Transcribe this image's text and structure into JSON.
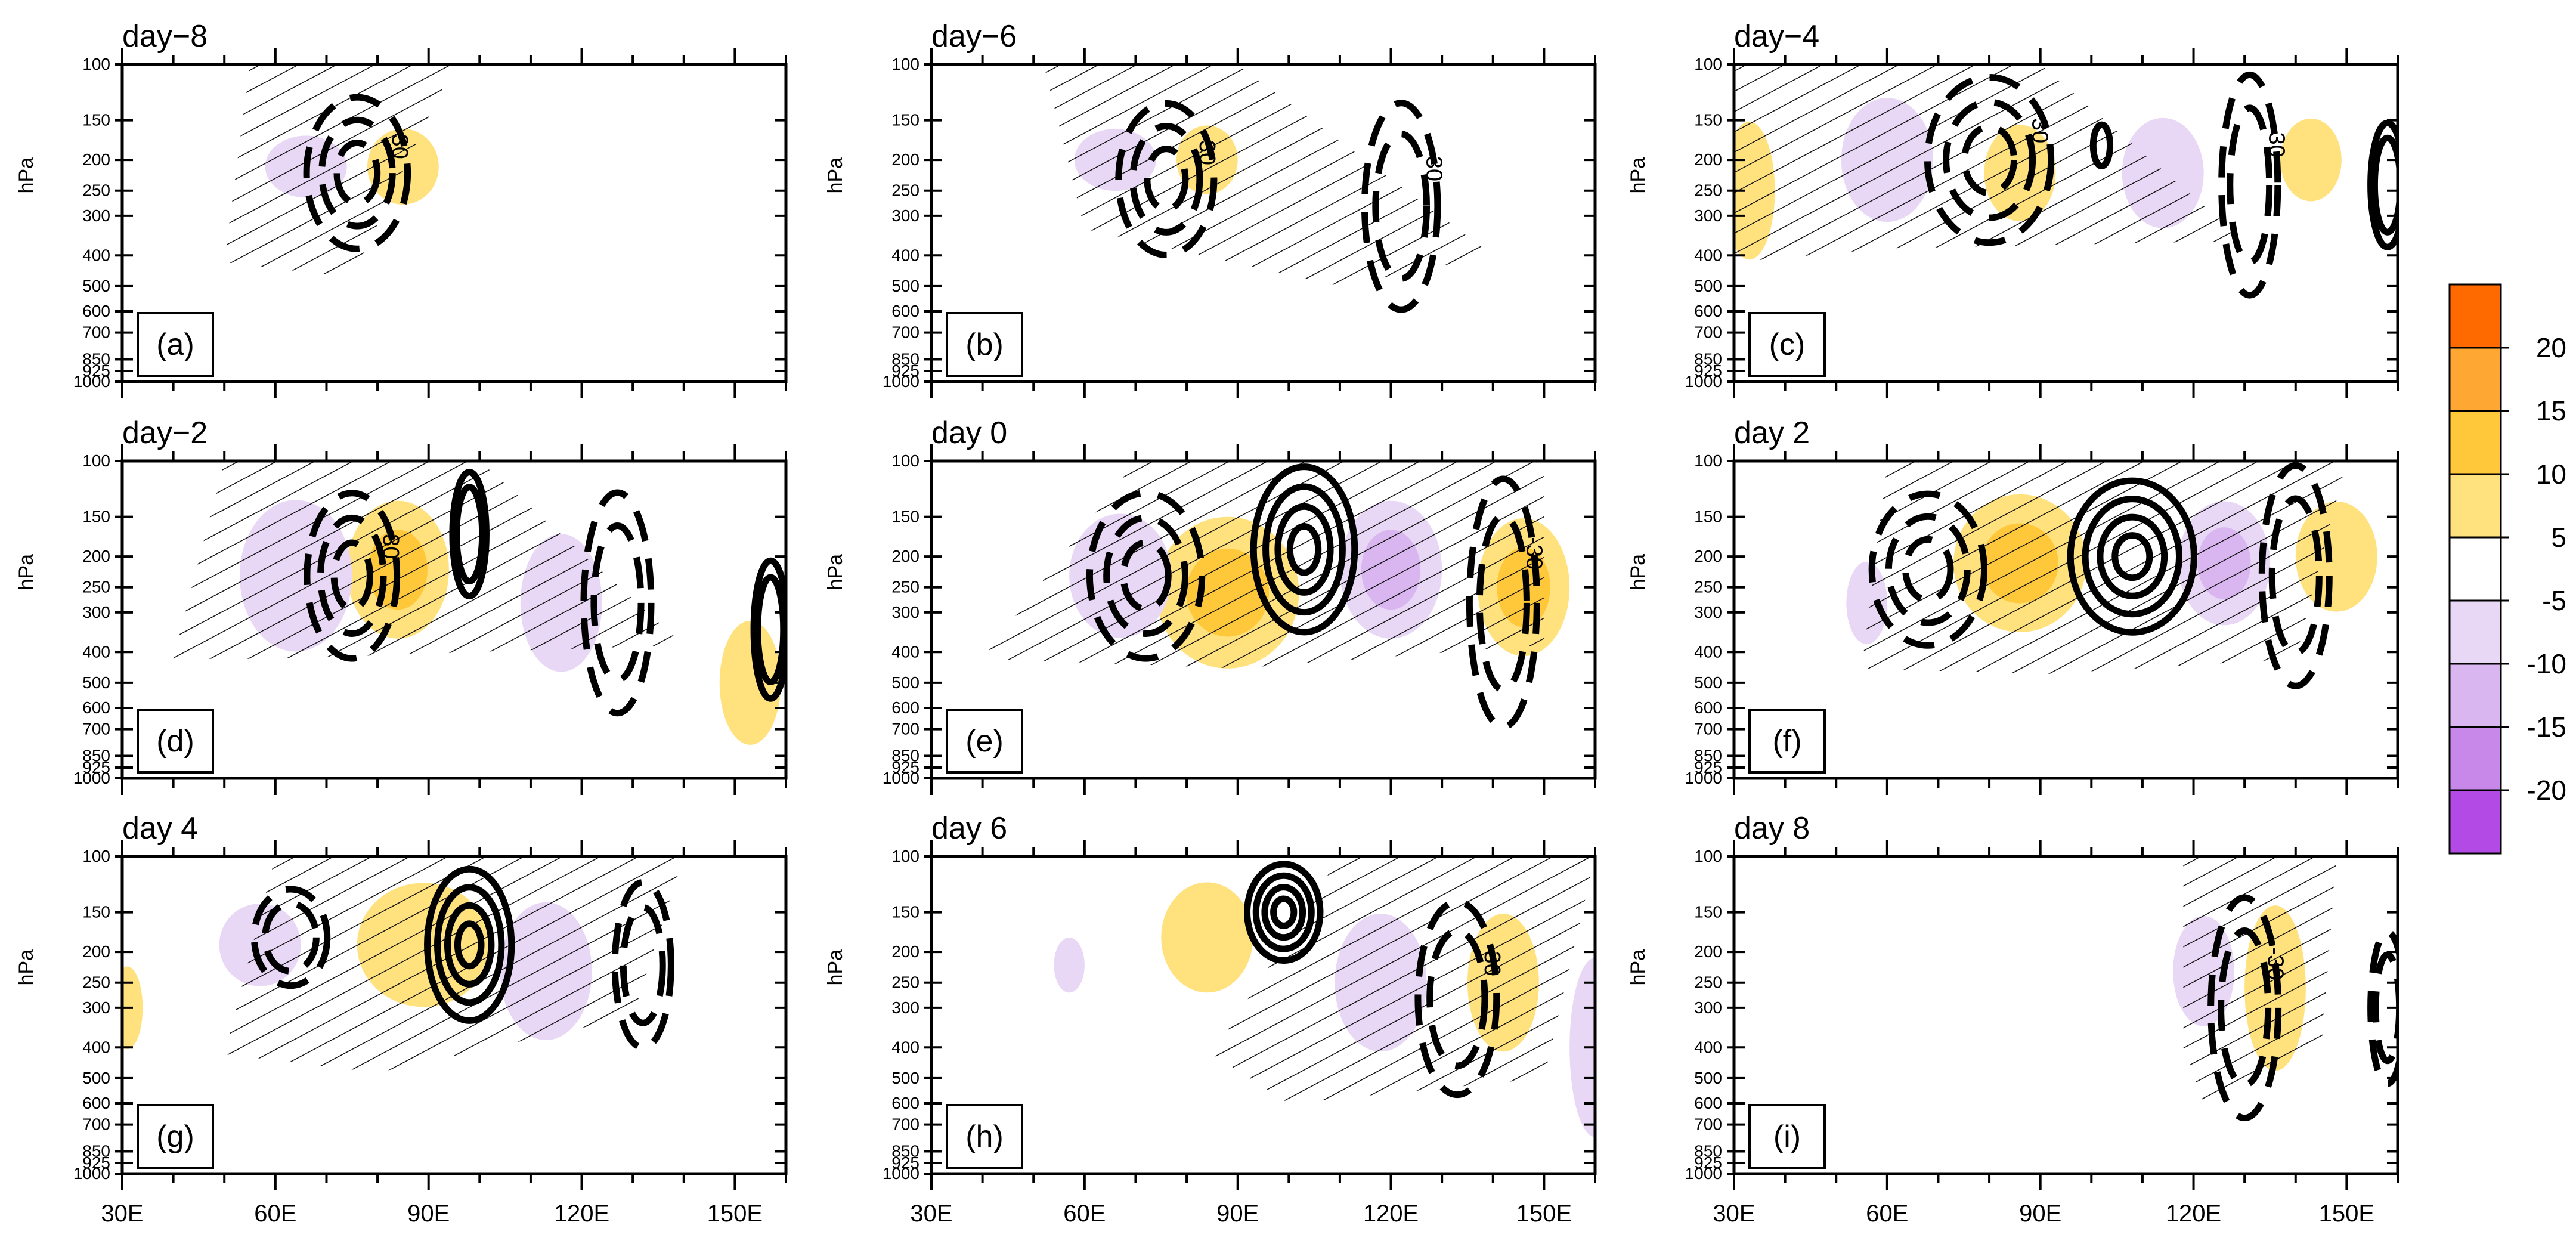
{
  "chart_data": {
    "type": "heatmap",
    "description_free": true,
    "y_axis": {
      "label": "hPa",
      "ticks": [
        100,
        150,
        200,
        250,
        300,
        400,
        500,
        600,
        700,
        850,
        925,
        1000
      ],
      "tick_labels": [
        "100",
        "150",
        "200",
        "250",
        "300",
        "400",
        "500",
        "600",
        "700",
        "850",
        "925",
        "1000"
      ],
      "range": [
        1000,
        100
      ],
      "scale": "log"
    },
    "x_axis": {
      "ticks": [
        30,
        60,
        90,
        120,
        150
      ],
      "tick_labels": [
        "30E",
        "60E",
        "90E",
        "120E",
        "150E"
      ],
      "range": [
        30,
        160
      ]
    },
    "contour_label": "-30",
    "colorbar": {
      "levels": [
        "20",
        "15",
        "10",
        "5",
        "-5",
        "-10",
        "-15",
        "-20"
      ],
      "colors": [
        "#ff6a00",
        "#ffa733",
        "#ffc83a",
        "#ffe27e",
        "#ffffff",
        "#e8d8f6",
        "#d9b6f0",
        "#c788ea",
        "#b44ae6"
      ]
    },
    "panels": [
      {
        "day": "day−8",
        "letter": "(a)",
        "positive": [
          {
            "lon": 85,
            "p": 210,
            "w": 7,
            "h": 0.55,
            "lvl": 1
          }
        ],
        "negative": [
          {
            "lon": 66,
            "p": 210,
            "w": 8,
            "h": 0.45,
            "lvl": 1
          }
        ],
        "solid": [],
        "dashed": [
          {
            "lon": 76,
            "p": 220,
            "w": 18,
            "h": 1.1,
            "label": true
          }
        ],
        "hatch": [
          [
            55,
            100
          ],
          [
            95,
            100
          ],
          [
            75,
            470
          ],
          [
            50,
            420
          ]
        ]
      },
      {
        "day": "day−6",
        "letter": "(b)",
        "positive": [
          {
            "lon": 84,
            "p": 200,
            "w": 6,
            "h": 0.5,
            "lvl": 1
          }
        ],
        "negative": [
          {
            "lon": 66,
            "p": 200,
            "w": 8,
            "h": 0.45,
            "lvl": 1
          }
        ],
        "solid": [],
        "dashed": [
          {
            "lon": 76,
            "p": 230,
            "w": 17,
            "h": 1.1,
            "label": true
          },
          {
            "lon": 122,
            "p": 280,
            "w": 13,
            "h": 1.5,
            "label": true
          }
        ],
        "hatch": [
          [
            52,
            100
          ],
          [
            90,
            100
          ],
          [
            140,
            400
          ],
          [
            110,
            500
          ],
          [
            60,
            330
          ]
        ]
      },
      {
        "day": "day−4",
        "letter": "(c)",
        "positive": [
          {
            "lon": 33,
            "p": 250,
            "w": 5,
            "h": 1.0,
            "lvl": 1
          },
          {
            "lon": 86,
            "p": 220,
            "w": 7,
            "h": 0.7,
            "lvl": 1
          },
          {
            "lon": 143,
            "p": 200,
            "w": 6,
            "h": 0.6,
            "lvl": 1
          }
        ],
        "negative": [
          {
            "lon": 60,
            "p": 200,
            "w": 9,
            "h": 0.9,
            "lvl": 1
          },
          {
            "lon": 114,
            "p": 220,
            "w": 8,
            "h": 0.8,
            "lvl": 1
          }
        ],
        "solid": [
          {
            "lon": 102,
            "p": 180,
            "w": 3,
            "h": 0.3
          },
          {
            "lon": 158,
            "p": 240,
            "w": 6,
            "h": 0.9
          }
        ],
        "dashed": [
          {
            "lon": 80,
            "p": 200,
            "w": 22,
            "h": 1.2,
            "label": true
          },
          {
            "lon": 131,
            "p": 240,
            "w": 10,
            "h": 1.6,
            "label": true
          }
        ],
        "hatch": [
          [
            30,
            100
          ],
          [
            90,
            100
          ],
          [
            130,
            360
          ],
          [
            60,
            380
          ],
          [
            30,
            420
          ]
        ]
      },
      {
        "day": "day−2",
        "letter": "(d)",
        "positive": [
          {
            "lon": 84,
            "p": 220,
            "w": 10,
            "h": 1.0,
            "lvl": 2
          },
          {
            "lon": 153,
            "p": 500,
            "w": 6,
            "h": 0.9,
            "lvl": 1
          }
        ],
        "negative": [
          {
            "lon": 64,
            "p": 230,
            "w": 11,
            "h": 1.1,
            "lvl": 1
          },
          {
            "lon": 116,
            "p": 280,
            "w": 8,
            "h": 1.0,
            "lvl": 1
          }
        ],
        "solid": [
          {
            "lon": 98,
            "p": 170,
            "w": 6,
            "h": 0.9
          },
          {
            "lon": 157,
            "p": 340,
            "w": 6,
            "h": 1.0
          }
        ],
        "dashed": [
          {
            "lon": 75,
            "p": 230,
            "w": 16,
            "h": 1.2,
            "label": true
          },
          {
            "lon": 127,
            "p": 280,
            "w": 12,
            "h": 1.6,
            "label": false
          }
        ],
        "hatch": [
          [
            50,
            100
          ],
          [
            100,
            100
          ],
          [
            140,
            380
          ],
          [
            60,
            420
          ],
          [
            40,
            420
          ]
        ]
      },
      {
        "day": "day 0",
        "letter": "(e)",
        "positive": [
          {
            "lon": 88,
            "p": 260,
            "w": 14,
            "h": 1.1,
            "lvl": 2
          },
          {
            "lon": 146,
            "p": 250,
            "w": 9,
            "h": 1.0,
            "lvl": 2
          }
        ],
        "negative": [
          {
            "lon": 67,
            "p": 230,
            "w": 10,
            "h": 0.9,
            "lvl": 1
          },
          {
            "lon": 120,
            "p": 220,
            "w": 10,
            "h": 1.0,
            "lvl": 2
          }
        ],
        "solid": [
          {
            "lon": 103,
            "p": 190,
            "w": 18,
            "h": 1.2
          }
        ],
        "dashed": [
          {
            "lon": 72,
            "p": 230,
            "w": 20,
            "h": 1.2,
            "label": false
          },
          {
            "lon": 142,
            "p": 280,
            "w": 12,
            "h": 1.8,
            "label": true
          }
        ],
        "hatch": [
          [
            70,
            100
          ],
          [
            150,
            100
          ],
          [
            150,
            380
          ],
          [
            90,
            450
          ],
          [
            40,
            420
          ]
        ]
      },
      {
        "day": "day 2",
        "letter": "(f)",
        "positive": [
          {
            "lon": 86,
            "p": 210,
            "w": 13,
            "h": 1.0,
            "lvl": 2
          },
          {
            "lon": 148,
            "p": 200,
            "w": 8,
            "h": 0.8,
            "lvl": 1
          }
        ],
        "negative": [
          {
            "lon": 126,
            "p": 210,
            "w": 9,
            "h": 0.9,
            "lvl": 2
          },
          {
            "lon": 56,
            "p": 280,
            "w": 4,
            "h": 0.6,
            "lvl": 1
          }
        ],
        "solid": [
          {
            "lon": 108,
            "p": 200,
            "w": 22,
            "h": 1.1
          }
        ],
        "dashed": [
          {
            "lon": 68,
            "p": 220,
            "w": 20,
            "h": 1.1,
            "label": false
          },
          {
            "lon": 140,
            "p": 230,
            "w": 12,
            "h": 1.6,
            "label": false
          }
        ],
        "hatch": [
          [
            60,
            100
          ],
          [
            150,
            100
          ],
          [
            140,
            420
          ],
          [
            90,
            470
          ],
          [
            55,
            450
          ]
        ]
      },
      {
        "day": "day 4",
        "letter": "(g)",
        "positive": [
          {
            "lon": 89,
            "p": 190,
            "w": 13,
            "h": 0.9,
            "lvl": 1
          },
          {
            "lon": 31,
            "p": 300,
            "w": 3,
            "h": 0.6,
            "lvl": 1
          }
        ],
        "negative": [
          {
            "lon": 57,
            "p": 190,
            "w": 8,
            "h": 0.6,
            "lvl": 1
          },
          {
            "lon": 113,
            "p": 230,
            "w": 9,
            "h": 1.0,
            "lvl": 1
          }
        ],
        "solid": [
          {
            "lon": 98,
            "p": 190,
            "w": 15,
            "h": 1.1
          }
        ],
        "dashed": [
          {
            "lon": 63,
            "p": 180,
            "w": 13,
            "h": 0.7,
            "label": false
          },
          {
            "lon": 132,
            "p": 220,
            "w": 10,
            "h": 1.2,
            "label": false
          }
        ],
        "hatch": [
          [
            60,
            100
          ],
          [
            140,
            100
          ],
          [
            130,
            320
          ],
          [
            80,
            480
          ],
          [
            50,
            420
          ]
        ]
      },
      {
        "day": "day 6",
        "letter": "(h)",
        "positive": [
          {
            "lon": 84,
            "p": 180,
            "w": 9,
            "h": 0.8,
            "lvl": 1
          },
          {
            "lon": 142,
            "p": 250,
            "w": 7,
            "h": 1.0,
            "lvl": 1
          }
        ],
        "negative": [
          {
            "lon": 57,
            "p": 220,
            "w": 3,
            "h": 0.4,
            "lvl": 1
          },
          {
            "lon": 118,
            "p": 250,
            "w": 9,
            "h": 1.0,
            "lvl": 1
          },
          {
            "lon": 160,
            "p": 400,
            "w": 5,
            "h": 1.3,
            "lvl": 1
          }
        ],
        "solid": [
          {
            "lon": 99,
            "p": 150,
            "w": 13,
            "h": 0.7
          }
        ],
        "dashed": [
          {
            "lon": 133,
            "p": 280,
            "w": 14,
            "h": 1.4,
            "label": true
          }
        ],
        "hatch": [
          [
            110,
            100
          ],
          [
            160,
            100
          ],
          [
            150,
            500
          ],
          [
            100,
            600
          ],
          [
            85,
            420
          ]
        ]
      },
      {
        "day": "day 8",
        "letter": "(i)",
        "positive": [
          {
            "lon": 136,
            "p": 260,
            "w": 6,
            "h": 1.2,
            "lvl": 1
          }
        ],
        "negative": [
          {
            "lon": 122,
            "p": 230,
            "w": 6,
            "h": 0.8,
            "lvl": 1
          }
        ],
        "solid": [],
        "dashed": [
          {
            "lon": 130,
            "p": 300,
            "w": 12,
            "h": 1.6,
            "label": true
          },
          {
            "lon": 158,
            "p": 300,
            "w": 6,
            "h": 1.1,
            "label": false
          }
        ],
        "hatch": [
          [
            118,
            100
          ],
          [
            148,
            100
          ],
          [
            145,
            420
          ],
          [
            122,
            600
          ],
          [
            118,
            400
          ]
        ]
      }
    ]
  }
}
